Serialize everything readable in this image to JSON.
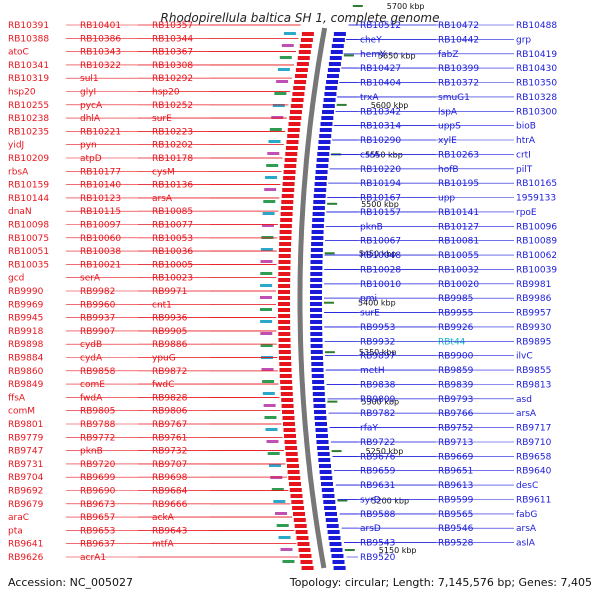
{
  "title": "Rhodopirellula baltica SH 1, complete genome",
  "footer": {
    "accession": "Accession: NC_005027",
    "summary": "Topology: circular; Length: 7,145,576 bp; Genes: 7,405"
  },
  "colors": {
    "left_strand": "#e8141c",
    "right_strand": "#1a1adb",
    "highlight": "#13b5c8",
    "backbone": "#777777",
    "tick": "#2e7d32"
  },
  "ticks": [
    "5700 kbp",
    "5650 kbp",
    "5600 kbp",
    "5550 kbp",
    "5500 kbp",
    "5450 kbp",
    "5400 kbp",
    "5350 kbp",
    "5300 kbp",
    "5250 kbp",
    "5200 kbp",
    "5150 kbp"
  ],
  "left_labels": [
    "RB10391",
    "RB10401",
    "RB10357",
    "RB10388",
    "RB10386",
    "RB10344",
    "atoC",
    "RB10343",
    "RB10367",
    "RB10341",
    "RB10322",
    "RB10308",
    "RB10319",
    "sul1",
    "RB10292",
    "hsp20",
    "glyI",
    "hsp20",
    "RB10255",
    "pycA",
    "RB10252",
    "RB10238",
    "dhlA",
    "surE",
    "RB10235",
    "RB10221",
    "RB10223",
    "yidJ",
    "pyn",
    "RB10202",
    "RB10209",
    "atpD",
    "RB10178",
    "rbsA",
    "RB10177",
    "cysM",
    "RB10159",
    "RB10140",
    "RB10136",
    "RB10144",
    "RB10123",
    "arsA",
    "dnaN",
    "RB10115",
    "RB10085",
    "RB10098",
    "RB10097",
    "RB10077",
    "RB10075",
    "RB10060",
    "RB10053",
    "RB10051",
    "RB10038",
    "RB10036",
    "RB10035",
    "RB10021",
    "RB10005",
    "gcd",
    "serA",
    "RB10023",
    "RB9990",
    "RB9982",
    "RB9971",
    "RB9969",
    "RB9960",
    "cnt1",
    "RB9945",
    "RB9937",
    "RB9936",
    "RB9918",
    "RB9907",
    "RB9905",
    "RB9898",
    "cydB",
    "RB9886",
    "RB9884",
    "cydA",
    "ypuG",
    "RB9860",
    "RB9858",
    "RB9872",
    "RB9849",
    "comE",
    "fwdC",
    "ffsA",
    "fwdA",
    "RB9828",
    "comM",
    "RB9805",
    "RB9806",
    "RB9801",
    "RB9788",
    "RB9767",
    "RB9779",
    "RB9772",
    "RB9761",
    "RB9747",
    "pknB",
    "RB9732",
    "RB9731",
    "RB9720",
    "RB9707",
    "RB9704",
    "RB9699",
    "RB9698",
    "RB9692",
    "RB9690",
    "RB9684",
    "RB9679",
    "RB9673",
    "RB9666",
    "araC",
    "RB9657",
    "ackA",
    "pta",
    "RB9653",
    "RB9643",
    "RB9641",
    "RB9637",
    "mtfA",
    "RB9626",
    "acrA1"
  ],
  "right_labels": [
    "RB10512",
    "RB10472",
    "RB10488",
    "cheY",
    "RB10442",
    "grp",
    "hemY",
    "fabZ",
    "RB10419",
    "RB10427",
    "RB10399",
    "RB10430",
    "RB10404",
    "RB10372",
    "RB10350",
    "trxA",
    "smuG1",
    "RB10328",
    "RB10342",
    "lspA",
    "RB10300",
    "RB10314",
    "uppS",
    "bioB",
    "RB10290",
    "xylE",
    "htrA",
    "csrA",
    "RB10263",
    "crtI",
    "RB10220",
    "hofB",
    "pilT",
    "RB10194",
    "RB10195",
    "RB10165",
    "RB10167",
    "upp",
    "1959133",
    "RB10157",
    "RB10141",
    "rpoE",
    "pknB",
    "RB10127",
    "RB10096",
    "RB10067",
    "RB10081",
    "RB10089",
    "RB10048",
    "RB10055",
    "RB10062",
    "RB10028",
    "RB10032",
    "RB10039",
    "RB10010",
    "RB10020",
    "RB9981",
    "pmi",
    "RB9985",
    "RB9986",
    "surE",
    "RB9955",
    "RB9957",
    "RB9953",
    "RB9926",
    "RB9930",
    "RB9932",
    "RBt44",
    "RB9895",
    "RB9897",
    "RB9900",
    "ilvC",
    "metH",
    "RB9859",
    "RB9855",
    "RB9838",
    "RB9839",
    "RB9813",
    "RB9809",
    "RB9793",
    "asd",
    "RB9782",
    "RB9766",
    "arsA",
    "rfaY",
    "RB9752",
    "RB9717",
    "RB9722",
    "RB9713",
    "RB9710",
    "RB9676",
    "RB9669",
    "RB9658",
    "RB9659",
    "RB9651",
    "RB9640",
    "RB9631",
    "RB9613",
    "desC",
    "syrD",
    "RB9599",
    "RB9611",
    "RB9588",
    "RB9565",
    "fabG",
    "arsD",
    "RB9546",
    "arsA",
    "RB9543",
    "RB9528",
    "aslA",
    "RB9520"
  ]
}
